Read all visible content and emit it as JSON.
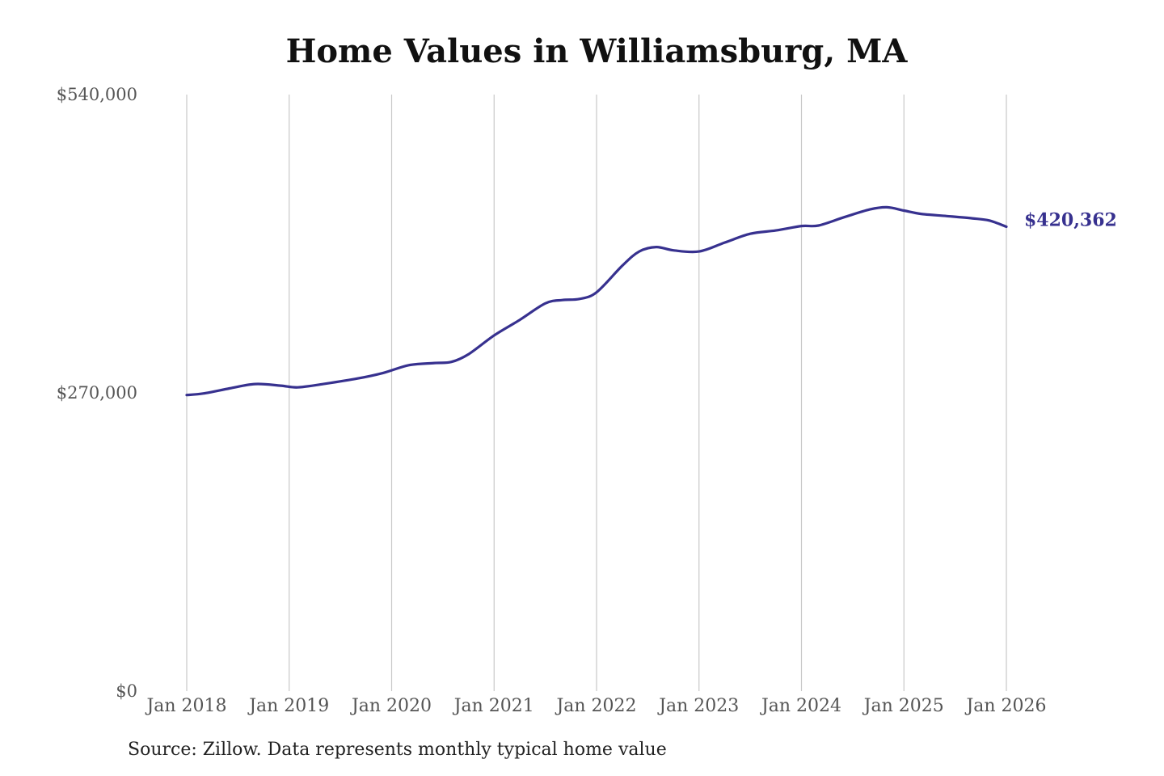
{
  "title": "Home Values in Williamsburg, MA",
  "source": "Source: Zillow. Data represents monthly typical home value",
  "colors": {
    "line": "#37318f",
    "grid": "#c8c8c8",
    "text": "#555555"
  },
  "chart_data": {
    "type": "line",
    "title": "Home Values in Williamsburg, MA",
    "ylim": [
      0,
      540000
    ],
    "yticks": [
      0,
      270000,
      540000
    ],
    "ytick_labels": [
      "$0",
      "$270,000",
      "$540,000"
    ],
    "xlim": [
      "2018-01",
      "2026-01"
    ],
    "xticks": [
      "2018-01",
      "2019-01",
      "2020-01",
      "2021-01",
      "2022-01",
      "2023-01",
      "2024-01",
      "2025-01",
      "2026-01"
    ],
    "xtick_labels": [
      "Jan 2018",
      "Jan 2019",
      "Jan 2020",
      "Jan 2021",
      "Jan 2022",
      "Jan 2023",
      "Jan 2024",
      "Jan 2025",
      "Jan 2026"
    ],
    "grid": "vertical",
    "end_label": "$420,362",
    "series": [
      {
        "color": "#37318f",
        "points": [
          [
            "2018-01",
            268000
          ],
          [
            "2018-03",
            269500
          ],
          [
            "2018-06",
            274000
          ],
          [
            "2018-09",
            278000
          ],
          [
            "2018-12",
            276500
          ],
          [
            "2019-02",
            275000
          ],
          [
            "2019-05",
            278000
          ],
          [
            "2019-09",
            283000
          ],
          [
            "2019-12",
            288000
          ],
          [
            "2020-03",
            295000
          ],
          [
            "2020-06",
            297000
          ],
          [
            "2020-08",
            298000
          ],
          [
            "2020-10",
            305000
          ],
          [
            "2021-01",
            322000
          ],
          [
            "2021-04",
            336000
          ],
          [
            "2021-07",
            351000
          ],
          [
            "2021-09",
            354000
          ],
          [
            "2021-11",
            355000
          ],
          [
            "2022-01",
            361000
          ],
          [
            "2022-04",
            385000
          ],
          [
            "2022-06",
            398000
          ],
          [
            "2022-08",
            402000
          ],
          [
            "2022-10",
            399000
          ],
          [
            "2023-01",
            398000
          ],
          [
            "2023-04",
            406000
          ],
          [
            "2023-07",
            414000
          ],
          [
            "2023-10",
            417000
          ],
          [
            "2024-01",
            421000
          ],
          [
            "2024-03",
            421500
          ],
          [
            "2024-06",
            429000
          ],
          [
            "2024-09",
            436000
          ],
          [
            "2024-11",
            438000
          ],
          [
            "2025-01",
            435000
          ],
          [
            "2025-03",
            432000
          ],
          [
            "2025-06",
            430000
          ],
          [
            "2025-09",
            428000
          ],
          [
            "2025-11",
            426000
          ],
          [
            "2026-01",
            420362
          ]
        ]
      }
    ]
  }
}
